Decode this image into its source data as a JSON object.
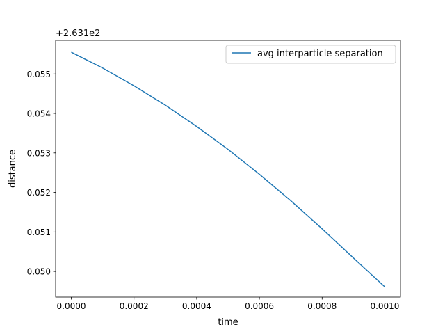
{
  "chart_data": {
    "type": "line",
    "title": "",
    "xlabel": "time",
    "ylabel": "distance",
    "offset_label": "+2.631e2",
    "offset_value": 263.1,
    "xlim": [
      -5e-05,
      0.00105
    ],
    "ylim": [
      0.04935,
      0.05585
    ],
    "x_ticks": [
      0.0,
      0.0002,
      0.0004,
      0.0006,
      0.0008,
      0.001
    ],
    "x_tick_labels": [
      "0.0000",
      "0.0002",
      "0.0004",
      "0.0006",
      "0.0008",
      "0.0010"
    ],
    "y_ticks": [
      0.05,
      0.051,
      0.052,
      0.053,
      0.054,
      0.055
    ],
    "y_tick_labels": [
      "0.050",
      "0.051",
      "0.052",
      "0.053",
      "0.054",
      "0.055"
    ],
    "grid": false,
    "legend_position": "upper right",
    "series": [
      {
        "name": "avg interparticle separation",
        "color": "#1f77b4",
        "x": [
          0.0,
          0.0001,
          0.0002,
          0.0003,
          0.0004,
          0.0005,
          0.0006,
          0.0007,
          0.0008,
          0.0009,
          0.001
        ],
        "y": [
          0.05555,
          0.05515,
          0.0547,
          0.05421,
          0.05367,
          0.05309,
          0.05246,
          0.05179,
          0.05108,
          0.05034,
          0.04961
        ]
      }
    ]
  }
}
